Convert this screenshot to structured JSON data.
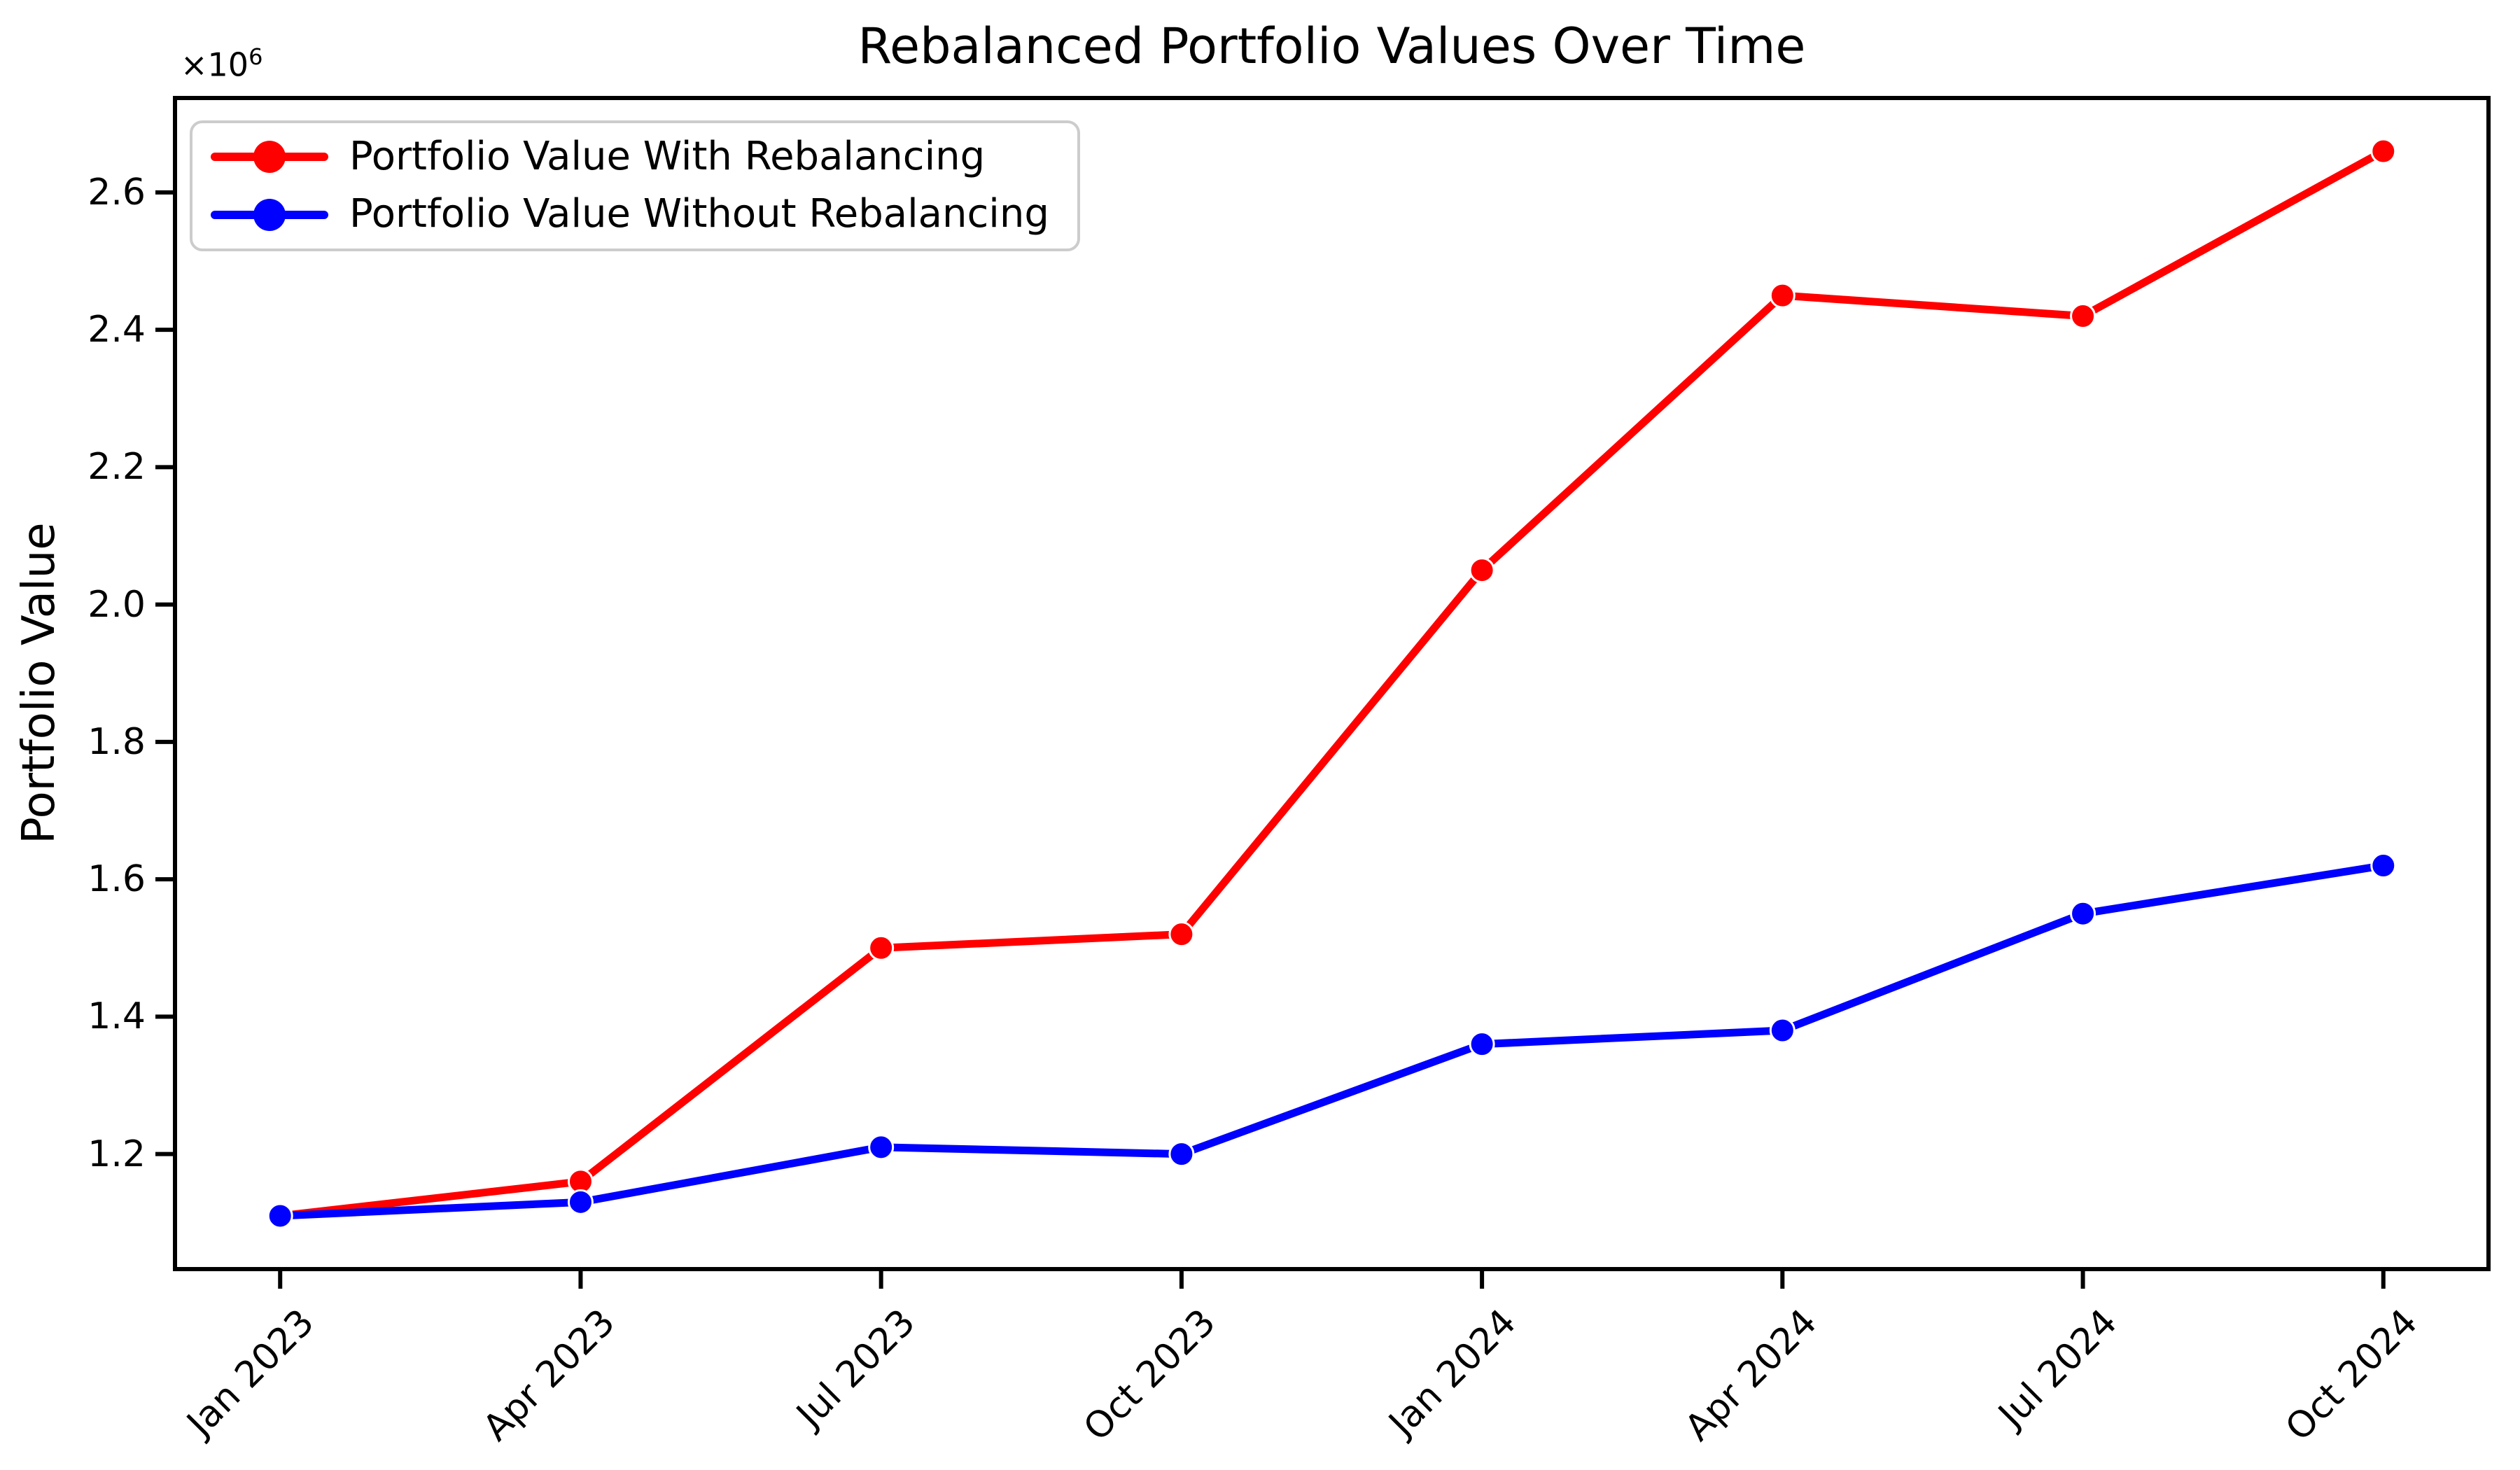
{
  "title": "Rebalanced Portfolio Values Over Time",
  "axes": {
    "y_label": "Portfolio Value",
    "offset_base": "×10",
    "offset_exp": "6"
  },
  "legend": {
    "position": "upper left",
    "border_color": "#cccccc"
  },
  "colors": {
    "axis": "#000000",
    "background": "#ffffff",
    "with_rebalancing": "#ff0000",
    "without_rebalancing": "#0000ff"
  },
  "chart_data": {
    "type": "line",
    "title": "Rebalanced Portfolio Values Over Time",
    "xlabel": "",
    "ylabel": "Portfolio Value",
    "y_unit_multiplier": "×10⁶",
    "grid": false,
    "legend_position": "upper left",
    "categories": [
      "Jan 2023",
      "Apr 2023",
      "Jul 2023",
      "Oct 2023",
      "Jan 2024",
      "Apr 2024",
      "Jul 2024",
      "Oct 2024"
    ],
    "y_ticks": [
      {
        "label": "1.2",
        "value": 1200000
      },
      {
        "label": "1.4",
        "value": 1400000
      },
      {
        "label": "1.6",
        "value": 1600000
      },
      {
        "label": "1.8",
        "value": 1800000
      },
      {
        "label": "2.0",
        "value": 2000000
      },
      {
        "label": "2.2",
        "value": 2200000
      },
      {
        "label": "2.4",
        "value": 2400000
      },
      {
        "label": "2.6",
        "value": 2600000
      }
    ],
    "ylim": [
      1032500,
      2737500
    ],
    "series": [
      {
        "name": "Portfolio Value With Rebalancing",
        "color": "#ff0000",
        "marker": "o",
        "values": [
          1110000,
          1160000,
          1500000,
          1520000,
          2050000,
          2450000,
          2420000,
          2660000
        ]
      },
      {
        "name": "Portfolio Value Without Rebalancing",
        "color": "#0000ff",
        "marker": "o",
        "values": [
          1110000,
          1130000,
          1210000,
          1200000,
          1360000,
          1380000,
          1550000,
          1620000
        ]
      }
    ]
  }
}
